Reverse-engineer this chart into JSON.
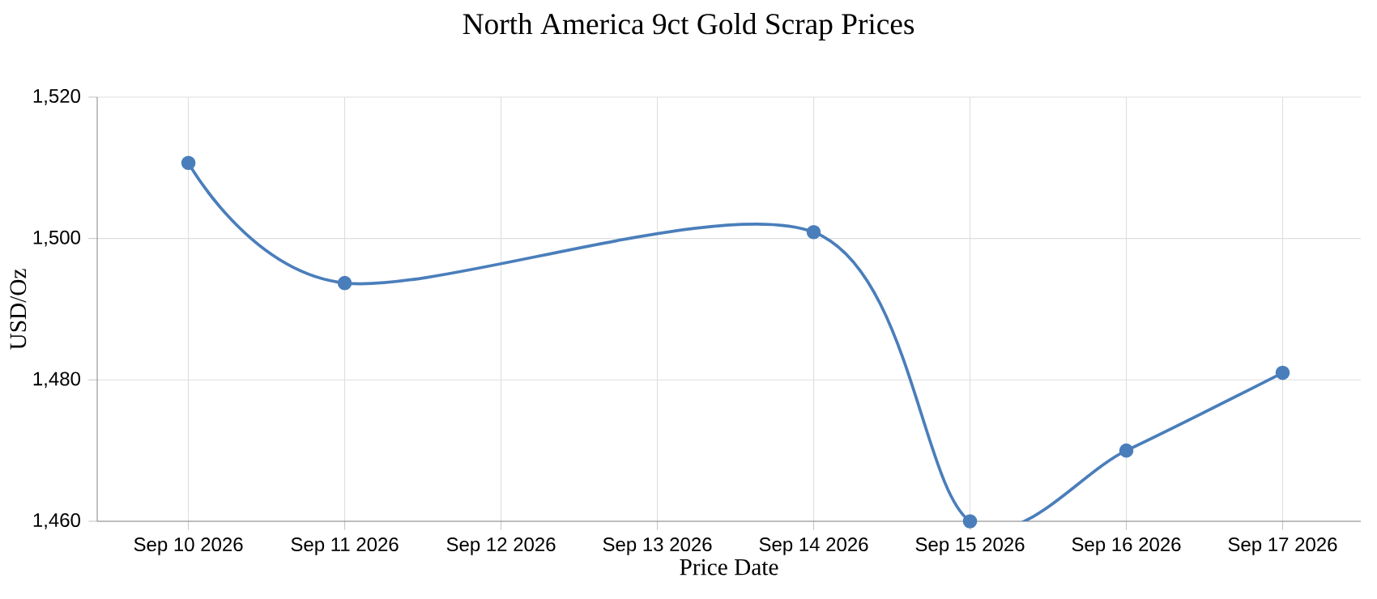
{
  "chart_data": {
    "type": "line",
    "title": "North America 9ct Gold Scrap Prices",
    "xlabel": "Price Date",
    "ylabel": "USD/Oz",
    "x": [
      "2026-09-10",
      "2026-09-11",
      "2026-09-14",
      "2026-09-15",
      "2026-09-16",
      "2026-09-17"
    ],
    "series": [
      {
        "color": "#4a7ebb",
        "values": [
          1510.7,
          1493.7,
          1500.9,
          1460,
          1470,
          1481
        ]
      }
    ],
    "xlim": [
      "2026-09-09T10:00",
      "2026-09-17T12:00"
    ],
    "xticks": [
      {
        "value": "2026-09-10",
        "label": "Sep 10 2026"
      },
      {
        "value": "2026-09-11",
        "label": "Sep 11 2026"
      },
      {
        "value": "2026-09-12",
        "label": "Sep 12 2026"
      },
      {
        "value": "2026-09-13",
        "label": "Sep 13 2026"
      },
      {
        "value": "2026-09-14",
        "label": "Sep 14 2026"
      },
      {
        "value": "2026-09-15",
        "label": "Sep 15 2026"
      },
      {
        "value": "2026-09-16",
        "label": "Sep 16 2026"
      },
      {
        "value": "2026-09-17",
        "label": "Sep 17 2026"
      }
    ],
    "ylim": [
      1460,
      1520
    ],
    "yticks": [
      {
        "value": 1460,
        "label": "1,460"
      },
      {
        "value": 1480,
        "label": "1,480"
      },
      {
        "value": 1500,
        "label": "1,500"
      },
      {
        "value": 1520,
        "label": "1,520"
      }
    ],
    "grid": true,
    "marker": "circle",
    "line_style": "solid"
  }
}
